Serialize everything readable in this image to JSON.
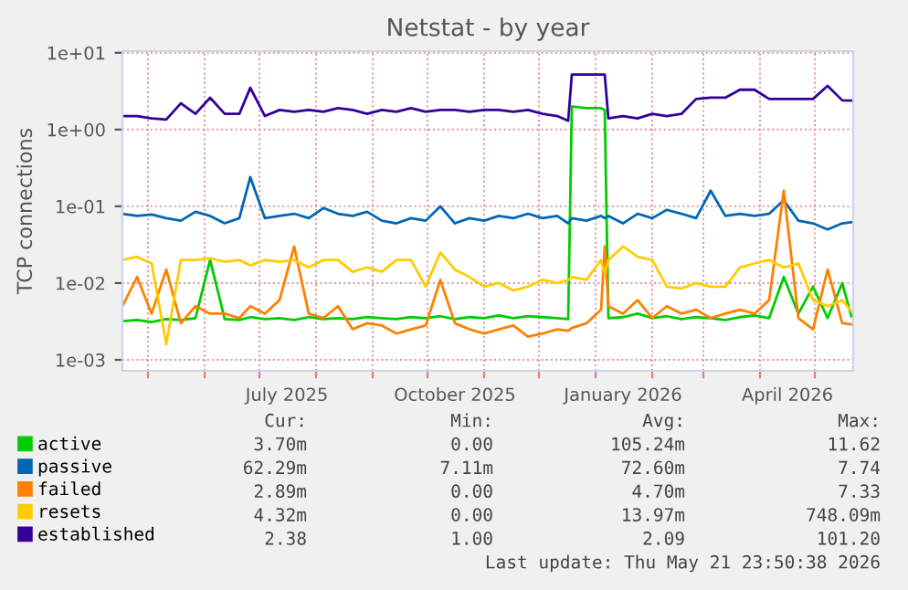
{
  "chart_data": {
    "type": "line",
    "title": "Netstat - by year",
    "ylabel": "TCP connections",
    "log": "y",
    "grid": true,
    "legend": "bottom left",
    "line_style": "solid",
    "xlim": [
      "2025-04-17",
      "2026-05-22"
    ],
    "xticks": [
      {
        "value": "2025-05-01",
        "label": null
      },
      {
        "value": "2025-06-01",
        "label": null
      },
      {
        "value": "2025-07-01",
        "label": null
      },
      {
        "value": "2025-07-16",
        "label": "July 2025"
      },
      {
        "value": "2025-08-01",
        "label": null
      },
      {
        "value": "2025-09-01",
        "label": null
      },
      {
        "value": "2025-10-01",
        "label": null
      },
      {
        "value": "2025-10-16",
        "label": "October 2025"
      },
      {
        "value": "2025-11-01",
        "label": null
      },
      {
        "value": "2025-12-01",
        "label": null
      },
      {
        "value": "2026-01-01",
        "label": null
      },
      {
        "value": "2026-01-16",
        "label": "January 2026"
      },
      {
        "value": "2026-02-01",
        "label": null
      },
      {
        "value": "2026-03-01",
        "label": null
      },
      {
        "value": "2026-04-01",
        "label": null
      },
      {
        "value": "2026-04-16",
        "label": "April 2026"
      },
      {
        "value": "2026-05-01",
        "label": null
      }
    ],
    "ylim": [
      0.00072,
      10.5
    ],
    "yticks": [
      {
        "value": 0.001,
        "label": "1e-03"
      },
      {
        "value": 0.01,
        "label": "1e-02"
      },
      {
        "value": 0.1,
        "label": "1e-01"
      },
      {
        "value": 1,
        "label": "1e+00"
      },
      {
        "value": 10,
        "label": "1e+01"
      }
    ],
    "x": [
      "2025-04-17",
      "2025-04-25",
      "2025-05-03",
      "2025-05-11",
      "2025-05-19",
      "2025-05-27",
      "2025-06-04",
      "2025-06-12",
      "2025-06-20",
      "2025-06-26",
      "2025-07-04",
      "2025-07-12",
      "2025-07-20",
      "2025-07-28",
      "2025-08-05",
      "2025-08-13",
      "2025-08-21",
      "2025-08-29",
      "2025-09-06",
      "2025-09-14",
      "2025-09-22",
      "2025-09-30",
      "2025-10-08",
      "2025-10-16",
      "2025-10-24",
      "2025-11-01",
      "2025-11-09",
      "2025-11-17",
      "2025-11-25",
      "2025-12-03",
      "2025-12-11",
      "2025-12-17",
      "2025-12-19",
      "2025-12-27",
      "2026-01-04",
      "2026-01-06",
      "2026-01-08",
      "2026-01-16",
      "2026-01-24",
      "2026-02-01",
      "2026-02-09",
      "2026-02-17",
      "2026-02-25",
      "2026-03-05",
      "2026-03-13",
      "2026-03-21",
      "2026-03-29",
      "2026-04-06",
      "2026-04-14",
      "2026-04-22",
      "2026-04-30",
      "2026-05-08",
      "2026-05-16",
      "2026-05-21"
    ],
    "series": [
      {
        "name": "active",
        "color": "#00cc00",
        "values": [
          0.0032,
          0.0033,
          0.0031,
          0.0034,
          0.0033,
          0.0035,
          0.02,
          0.0034,
          0.0033,
          0.0036,
          0.0034,
          0.0035,
          0.0033,
          0.0036,
          0.0034,
          0.0035,
          0.0034,
          0.0036,
          0.0035,
          0.0034,
          0.0036,
          0.0035,
          0.0037,
          0.0034,
          0.0036,
          0.0035,
          0.0038,
          0.0035,
          0.0037,
          0.0036,
          0.0035,
          0.0034,
          2.0,
          1.9,
          1.9,
          1.8,
          0.0035,
          0.0036,
          0.004,
          0.0035,
          0.0037,
          0.0034,
          0.0036,
          0.0035,
          0.0033,
          0.0036,
          0.0038,
          0.0035,
          0.012,
          0.004,
          0.009,
          0.0035,
          0.01,
          0.0037
        ]
      },
      {
        "name": "passive",
        "color": "#0066b3",
        "values": [
          0.08,
          0.075,
          0.078,
          0.07,
          0.065,
          0.085,
          0.075,
          0.06,
          0.07,
          0.24,
          0.07,
          0.075,
          0.08,
          0.07,
          0.095,
          0.08,
          0.075,
          0.085,
          0.065,
          0.06,
          0.07,
          0.065,
          0.1,
          0.06,
          0.07,
          0.065,
          0.075,
          0.07,
          0.08,
          0.07,
          0.075,
          0.06,
          0.07,
          0.065,
          0.075,
          0.07,
          0.075,
          0.06,
          0.08,
          0.07,
          0.09,
          0.08,
          0.07,
          0.16,
          0.075,
          0.08,
          0.075,
          0.08,
          0.12,
          0.065,
          0.06,
          0.05,
          0.06,
          0.062
        ]
      },
      {
        "name": "failed",
        "color": "#ff8000",
        "values": [
          0.005,
          0.012,
          0.004,
          0.015,
          0.003,
          0.005,
          0.004,
          0.004,
          0.0035,
          0.005,
          0.004,
          0.006,
          0.03,
          0.004,
          0.0035,
          0.005,
          0.0025,
          0.003,
          0.0028,
          0.0022,
          0.0025,
          0.0028,
          0.011,
          0.003,
          0.0025,
          0.0022,
          0.0025,
          0.0028,
          0.002,
          0.0022,
          0.0025,
          0.0024,
          0.0026,
          0.003,
          0.0045,
          0.03,
          0.005,
          0.004,
          0.006,
          0.0035,
          0.005,
          0.004,
          0.0045,
          0.0035,
          0.004,
          0.0045,
          0.004,
          0.006,
          0.16,
          0.0035,
          0.0025,
          0.015,
          0.003,
          0.0029
        ]
      },
      {
        "name": "resets",
        "color": "#ffcc00",
        "values": [
          0.02,
          0.022,
          0.018,
          0.0016,
          0.02,
          0.02,
          0.021,
          0.019,
          0.02,
          0.017,
          0.02,
          0.019,
          0.02,
          0.016,
          0.02,
          0.02,
          0.014,
          0.016,
          0.014,
          0.02,
          0.02,
          0.009,
          0.025,
          0.015,
          0.012,
          0.009,
          0.01,
          0.008,
          0.009,
          0.011,
          0.01,
          0.011,
          0.012,
          0.011,
          0.02,
          0.013,
          0.02,
          0.03,
          0.022,
          0.02,
          0.009,
          0.0085,
          0.01,
          0.009,
          0.009,
          0.016,
          0.018,
          0.02,
          0.016,
          0.018,
          0.006,
          0.005,
          0.006,
          0.0043
        ]
      },
      {
        "name": "established",
        "color": "#330099",
        "values": [
          1.5,
          1.5,
          1.4,
          1.35,
          2.2,
          1.6,
          2.6,
          1.6,
          1.6,
          3.5,
          1.5,
          1.8,
          1.7,
          1.8,
          1.7,
          1.9,
          1.8,
          1.6,
          1.8,
          1.7,
          1.9,
          1.7,
          1.8,
          1.8,
          1.7,
          1.8,
          1.8,
          1.7,
          1.8,
          1.6,
          1.5,
          1.3,
          5.2,
          5.2,
          5.2,
          5.2,
          1.4,
          1.5,
          1.4,
          1.6,
          1.5,
          1.6,
          2.5,
          2.6,
          2.6,
          3.3,
          3.3,
          2.5,
          2.5,
          2.5,
          2.5,
          3.7,
          2.4,
          2.38
        ]
      }
    ],
    "annotations": [
      "Cur:",
      "Min:",
      "Avg:",
      "Max:",
      "3.70m",
      "0.00",
      "105.24m",
      "11.62",
      "62.29m",
      "7.11m",
      "72.60m",
      "7.74",
      "2.89m",
      "0.00",
      "4.70m",
      "7.33",
      "4.32m",
      "0.00",
      "13.97m",
      "748.09m",
      "2.38",
      "1.00",
      "2.09",
      "101.20",
      "Last update: Thu May 21 23:50:38 2026"
    ]
  }
}
